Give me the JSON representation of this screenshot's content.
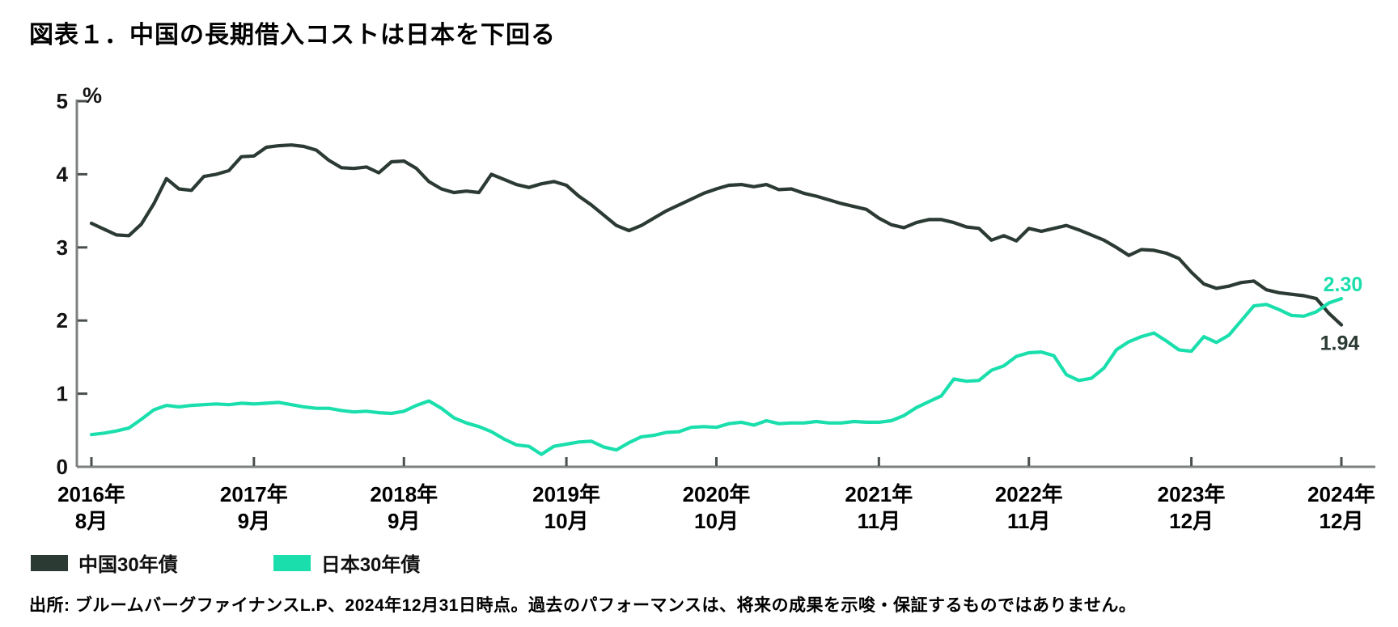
{
  "title": "図表１．中国の長期借入コストは日本を下回る",
  "source": "出所: ブルームバーグファイナンスL.P、2024年12月31日時点。過去のパフォーマンスは、将来の成果を示唆・保証するものではありません。",
  "legend": {
    "china": "中国30年債",
    "japan": "日本30年債"
  },
  "colors": {
    "china": "#2b3a33",
    "japan": "#1adfad",
    "axis": "#7d817e",
    "tick": "#4a4f4c",
    "text": "#141414"
  },
  "chart_data": {
    "type": "line",
    "title": "図表１．中国の長期借入コストは日本を下回る",
    "ylabel": "%",
    "ylim": [
      0,
      5
    ],
    "yticks": [
      0,
      1,
      2,
      3,
      4,
      5
    ],
    "grid": false,
    "legend_position": "bottom-left",
    "x_unit": "month-index from 2016-08",
    "x_months_total": 100,
    "xticks": [
      {
        "m": 0,
        "year": "2016年",
        "month": "8月"
      },
      {
        "m": 13,
        "year": "2017年",
        "month": "9月"
      },
      {
        "m": 25,
        "year": "2018年",
        "month": "9月"
      },
      {
        "m": 38,
        "year": "2019年",
        "month": "10月"
      },
      {
        "m": 50,
        "year": "2020年",
        "month": "10月"
      },
      {
        "m": 63,
        "year": "2021年",
        "month": "11月"
      },
      {
        "m": 75,
        "year": "2022年",
        "month": "11月"
      },
      {
        "m": 88,
        "year": "2023年",
        "month": "12月"
      },
      {
        "m": 100,
        "year": "2024年",
        "month": "12月"
      }
    ],
    "series": [
      {
        "name": "中国30年債",
        "color": "#2b3a33",
        "end_label": "1.94",
        "values": [
          3.33,
          3.25,
          3.17,
          3.16,
          3.32,
          3.6,
          3.94,
          3.8,
          3.78,
          3.97,
          4.0,
          4.05,
          4.24,
          4.25,
          4.37,
          4.39,
          4.4,
          4.38,
          4.33,
          4.19,
          4.09,
          4.08,
          4.1,
          4.02,
          4.17,
          4.18,
          4.08,
          3.9,
          3.8,
          3.75,
          3.77,
          3.75,
          4.0,
          3.93,
          3.86,
          3.82,
          3.87,
          3.9,
          3.85,
          3.7,
          3.58,
          3.44,
          3.3,
          3.23,
          3.3,
          3.4,
          3.5,
          3.58,
          3.66,
          3.74,
          3.8,
          3.85,
          3.86,
          3.83,
          3.86,
          3.79,
          3.8,
          3.74,
          3.7,
          3.65,
          3.6,
          3.56,
          3.52,
          3.4,
          3.31,
          3.27,
          3.34,
          3.38,
          3.38,
          3.34,
          3.28,
          3.26,
          3.1,
          3.16,
          3.09,
          3.26,
          3.22,
          3.26,
          3.3,
          3.24,
          3.17,
          3.1,
          3.0,
          2.89,
          2.97,
          2.96,
          2.92,
          2.85,
          2.66,
          2.5,
          2.44,
          2.47,
          2.52,
          2.54,
          2.42,
          2.38,
          2.36,
          2.34,
          2.3,
          2.1,
          1.94
        ]
      },
      {
        "name": "日本30年債",
        "color": "#1adfad",
        "end_label": "2.30",
        "values": [
          0.44,
          0.46,
          0.49,
          0.53,
          0.65,
          0.78,
          0.84,
          0.82,
          0.84,
          0.85,
          0.86,
          0.85,
          0.87,
          0.86,
          0.87,
          0.88,
          0.85,
          0.82,
          0.8,
          0.8,
          0.77,
          0.75,
          0.76,
          0.74,
          0.73,
          0.76,
          0.84,
          0.9,
          0.8,
          0.67,
          0.6,
          0.55,
          0.48,
          0.38,
          0.3,
          0.28,
          0.17,
          0.28,
          0.31,
          0.34,
          0.35,
          0.27,
          0.23,
          0.33,
          0.41,
          0.43,
          0.47,
          0.48,
          0.54,
          0.55,
          0.54,
          0.59,
          0.61,
          0.57,
          0.63,
          0.59,
          0.6,
          0.6,
          0.62,
          0.6,
          0.6,
          0.62,
          0.61,
          0.61,
          0.63,
          0.7,
          0.81,
          0.89,
          0.97,
          1.2,
          1.17,
          1.18,
          1.32,
          1.38,
          1.51,
          1.56,
          1.57,
          1.52,
          1.26,
          1.18,
          1.21,
          1.35,
          1.6,
          1.71,
          1.78,
          1.83,
          1.72,
          1.6,
          1.58,
          1.78,
          1.7,
          1.8,
          2.0,
          2.2,
          2.22,
          2.15,
          2.07,
          2.06,
          2.12,
          2.24,
          2.3
        ]
      }
    ]
  }
}
